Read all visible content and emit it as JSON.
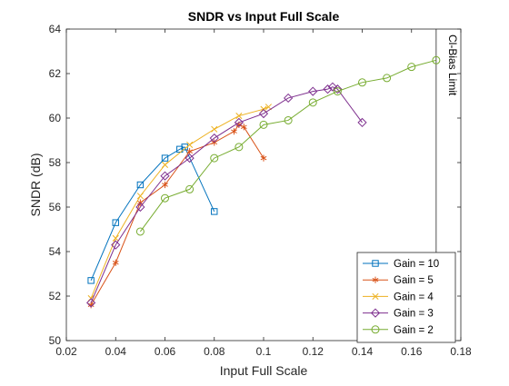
{
  "chart_data": {
    "type": "line",
    "title": "SNDR vs Input Full Scale",
    "xlabel": "Input Full Scale",
    "ylabel": "SNDR (dB)",
    "xlim": [
      0.02,
      0.18
    ],
    "ylim": [
      50,
      64
    ],
    "xticks": [
      0.02,
      0.04,
      0.06,
      0.08,
      0.1,
      0.12,
      0.14,
      0.16,
      0.18
    ],
    "yticks": [
      50,
      52,
      54,
      56,
      58,
      60,
      62,
      64
    ],
    "xtick_labels": [
      "0.02",
      "0.04",
      "0.06",
      "0.08",
      "0.1",
      "0.12",
      "0.14",
      "0.16",
      "0.18"
    ],
    "ytick_labels": [
      "50",
      "52",
      "54",
      "56",
      "58",
      "60",
      "62",
      "64"
    ],
    "grid": false,
    "legend_position": "bottom-right",
    "series": [
      {
        "name": "Gain = 10",
        "color": "#0072BD",
        "marker": "square",
        "x": [
          0.03,
          0.04,
          0.05,
          0.06,
          0.066,
          0.068,
          0.08
        ],
        "y": [
          52.7,
          55.3,
          57.0,
          58.2,
          58.6,
          58.7,
          55.8
        ]
      },
      {
        "name": "Gain = 5",
        "color": "#D95319",
        "marker": "asterisk",
        "x": [
          0.03,
          0.04,
          0.05,
          0.06,
          0.07,
          0.08,
          0.088,
          0.09,
          0.092,
          0.1
        ],
        "y": [
          51.6,
          53.5,
          56.2,
          57.0,
          58.5,
          58.9,
          59.4,
          59.7,
          59.6,
          58.2
        ]
      },
      {
        "name": "Gain = 4",
        "color": "#EDB120",
        "marker": "x",
        "x": [
          0.03,
          0.04,
          0.05,
          0.06,
          0.07,
          0.08,
          0.09,
          0.1,
          0.102
        ],
        "y": [
          51.9,
          54.6,
          56.5,
          57.9,
          58.8,
          59.5,
          60.1,
          60.4,
          60.5
        ]
      },
      {
        "name": "Gain = 3",
        "color": "#7E2F8E",
        "marker": "diamond",
        "x": [
          0.03,
          0.04,
          0.05,
          0.06,
          0.07,
          0.08,
          0.09,
          0.1,
          0.11,
          0.12,
          0.126,
          0.128,
          0.13,
          0.14
        ],
        "y": [
          51.7,
          54.3,
          56.0,
          57.4,
          58.2,
          59.1,
          59.8,
          60.2,
          60.9,
          61.2,
          61.3,
          61.4,
          61.3,
          59.8
        ]
      },
      {
        "name": "Gain = 2",
        "color": "#77AC30",
        "marker": "circle",
        "x": [
          0.05,
          0.06,
          0.07,
          0.08,
          0.09,
          0.1,
          0.11,
          0.12,
          0.13,
          0.14,
          0.15,
          0.16,
          0.17
        ],
        "y": [
          54.9,
          56.4,
          56.8,
          58.2,
          58.7,
          59.7,
          59.9,
          60.7,
          61.2,
          61.6,
          61.8,
          62.3,
          62.6
        ]
      }
    ],
    "annotations": [
      {
        "type": "vline",
        "x": 0.17,
        "label": "Cl-Bias Limit",
        "color": "#262626"
      }
    ]
  }
}
